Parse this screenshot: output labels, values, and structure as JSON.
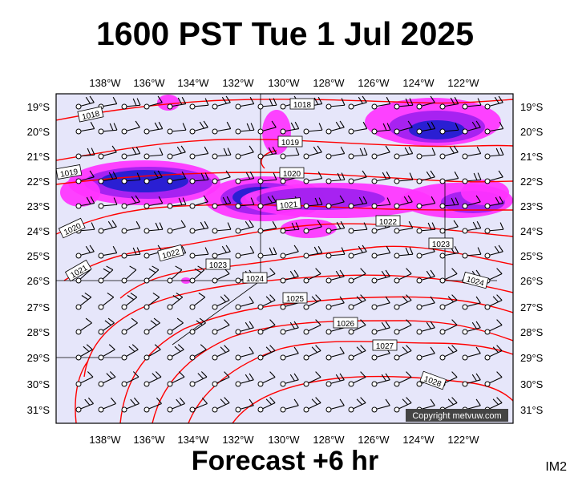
{
  "title": "1600 PST Tue 1 Jul 2025",
  "footer": "Forecast +6 hr",
  "image_tag": "IM2",
  "copyright": "Copyright metvuw.com",
  "colors": {
    "background": "#e6e6fa",
    "isobar": "#ff0000",
    "precip_light": "#ff33ff",
    "precip_mid": "#a020f0",
    "precip_heavy": "#2020d0",
    "precip_core": "#40c0e0"
  },
  "longitude_labels": [
    "138°W",
    "136°W",
    "134°W",
    "132°W",
    "130°W",
    "128°W",
    "126°W",
    "124°W",
    "122°W"
  ],
  "latitude_labels": [
    "19°S",
    "20°S",
    "21°S",
    "22°S",
    "23°S",
    "24°S",
    "25°S",
    "26°S",
    "27°S",
    "28°S",
    "29°S",
    "30°S",
    "31°S"
  ],
  "isobar_labels": [
    "1018",
    "1018",
    "1019",
    "1019",
    "1020",
    "1020",
    "1021",
    "1021",
    "1022",
    "1022",
    "1023",
    "1023",
    "1024",
    "1024",
    "1025",
    "1026",
    "1027",
    "1028"
  ],
  "map_features": [
    "isobars",
    "wind-barbs",
    "precipitation-shading",
    "station-grid"
  ]
}
